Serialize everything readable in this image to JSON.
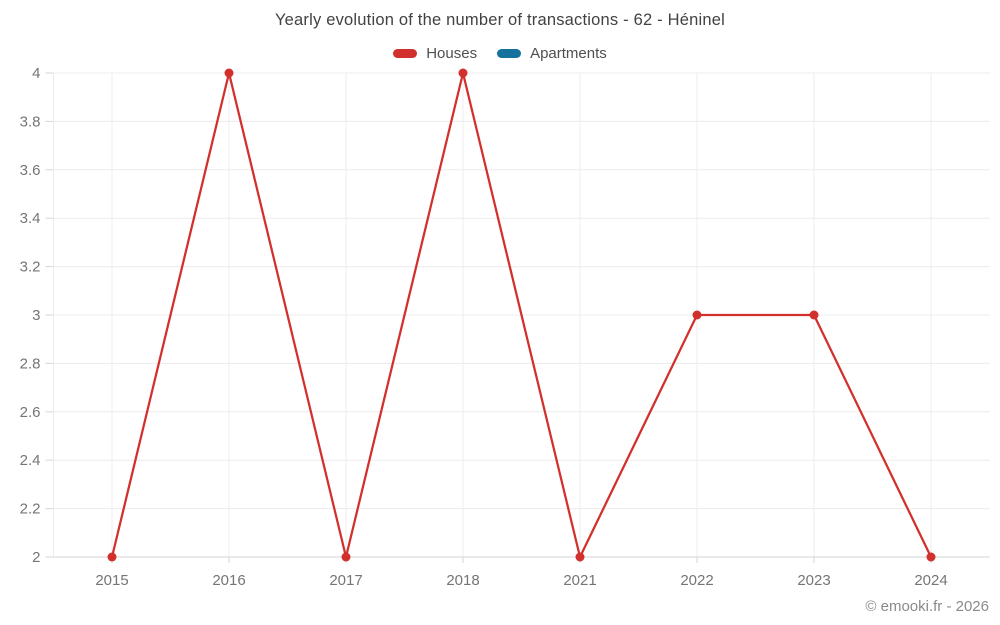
{
  "header": {
    "title": "Yearly evolution of the number of transactions - 62 - Héninel"
  },
  "legend": {
    "items": [
      {
        "label": "Houses",
        "color": "#d2302c"
      },
      {
        "label": "Apartments",
        "color": "#15729c"
      }
    ]
  },
  "footer": {
    "copyright": "© emooki.fr - 2026"
  },
  "chart_data": {
    "type": "line",
    "title": "Yearly evolution of the number of transactions - 62 - Héninel",
    "categories": [
      "2015",
      "2016",
      "2017",
      "2018",
      "2021",
      "2022",
      "2023",
      "2024"
    ],
    "series": [
      {
        "name": "Houses",
        "color": "#d2302c",
        "values": [
          2,
          4,
          2,
          4,
          2,
          3,
          3,
          2
        ]
      },
      {
        "name": "Apartments",
        "color": "#15729c",
        "values": []
      }
    ],
    "xlabel": "",
    "ylabel": "",
    "ylim": [
      2,
      4
    ],
    "ytick_step": 0.2,
    "ytick_labels": [
      "2",
      "2.2",
      "2.4",
      "2.6",
      "2.8",
      "3",
      "3.2",
      "3.4",
      "3.6",
      "3.8",
      "4"
    ],
    "grid": true,
    "legend_position": "top",
    "colors": {
      "grid_line": "#ececec",
      "axis_line": "#d6d6d6",
      "tick_label": "#757575"
    }
  }
}
